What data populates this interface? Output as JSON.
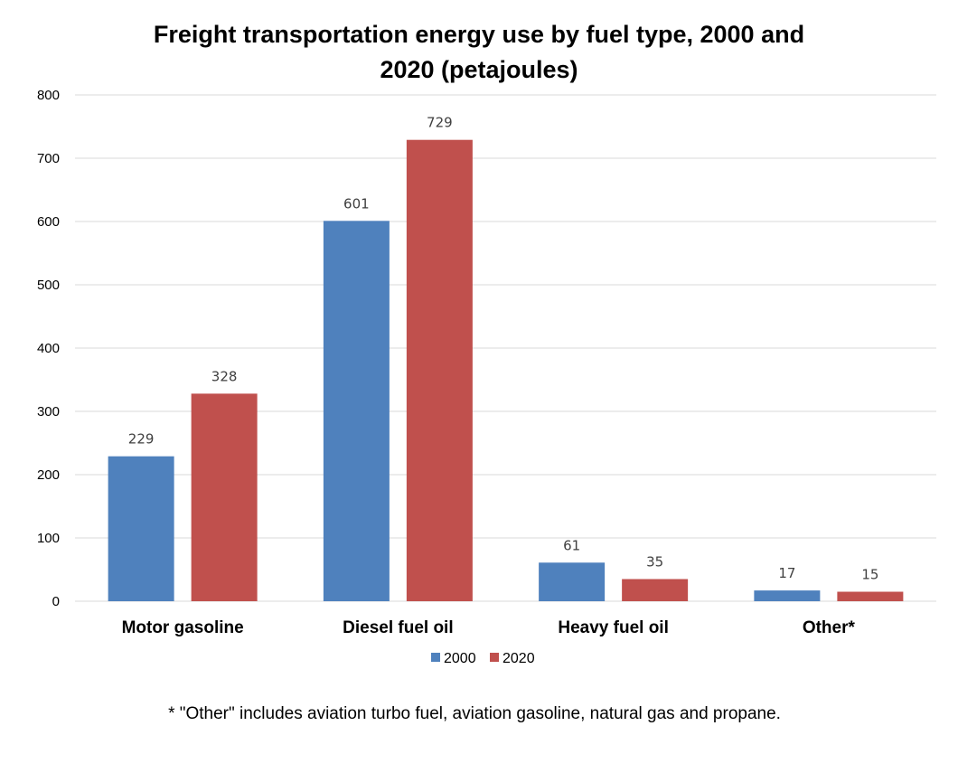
{
  "chart_data": {
    "type": "bar",
    "title": "Freight transportation energy use by fuel type, 2000 and 2020 (petajoules)",
    "title_lines": [
      "Freight transportation energy use by fuel type, 2000 and",
      "2020 (petajoules)"
    ],
    "xlabel": "",
    "ylabel": "",
    "categories": [
      "Motor gasoline",
      "Diesel fuel oil",
      "Heavy fuel oil",
      "Other*"
    ],
    "series": [
      {
        "name": "2000",
        "color": "#4f81bd",
        "values": [
          229,
          601,
          61,
          17
        ]
      },
      {
        "name": "2020",
        "color": "#c0504d",
        "values": [
          328,
          729,
          35,
          15
        ]
      }
    ],
    "ylim": [
      0,
      800
    ],
    "yticks": [
      0,
      100,
      200,
      300,
      400,
      500,
      600,
      700,
      800
    ],
    "grid": true,
    "legend_position": "bottom",
    "data_labels": true
  },
  "footnote": "* \"Other\" includes aviation turbo fuel, aviation gasoline, natural gas and propane."
}
